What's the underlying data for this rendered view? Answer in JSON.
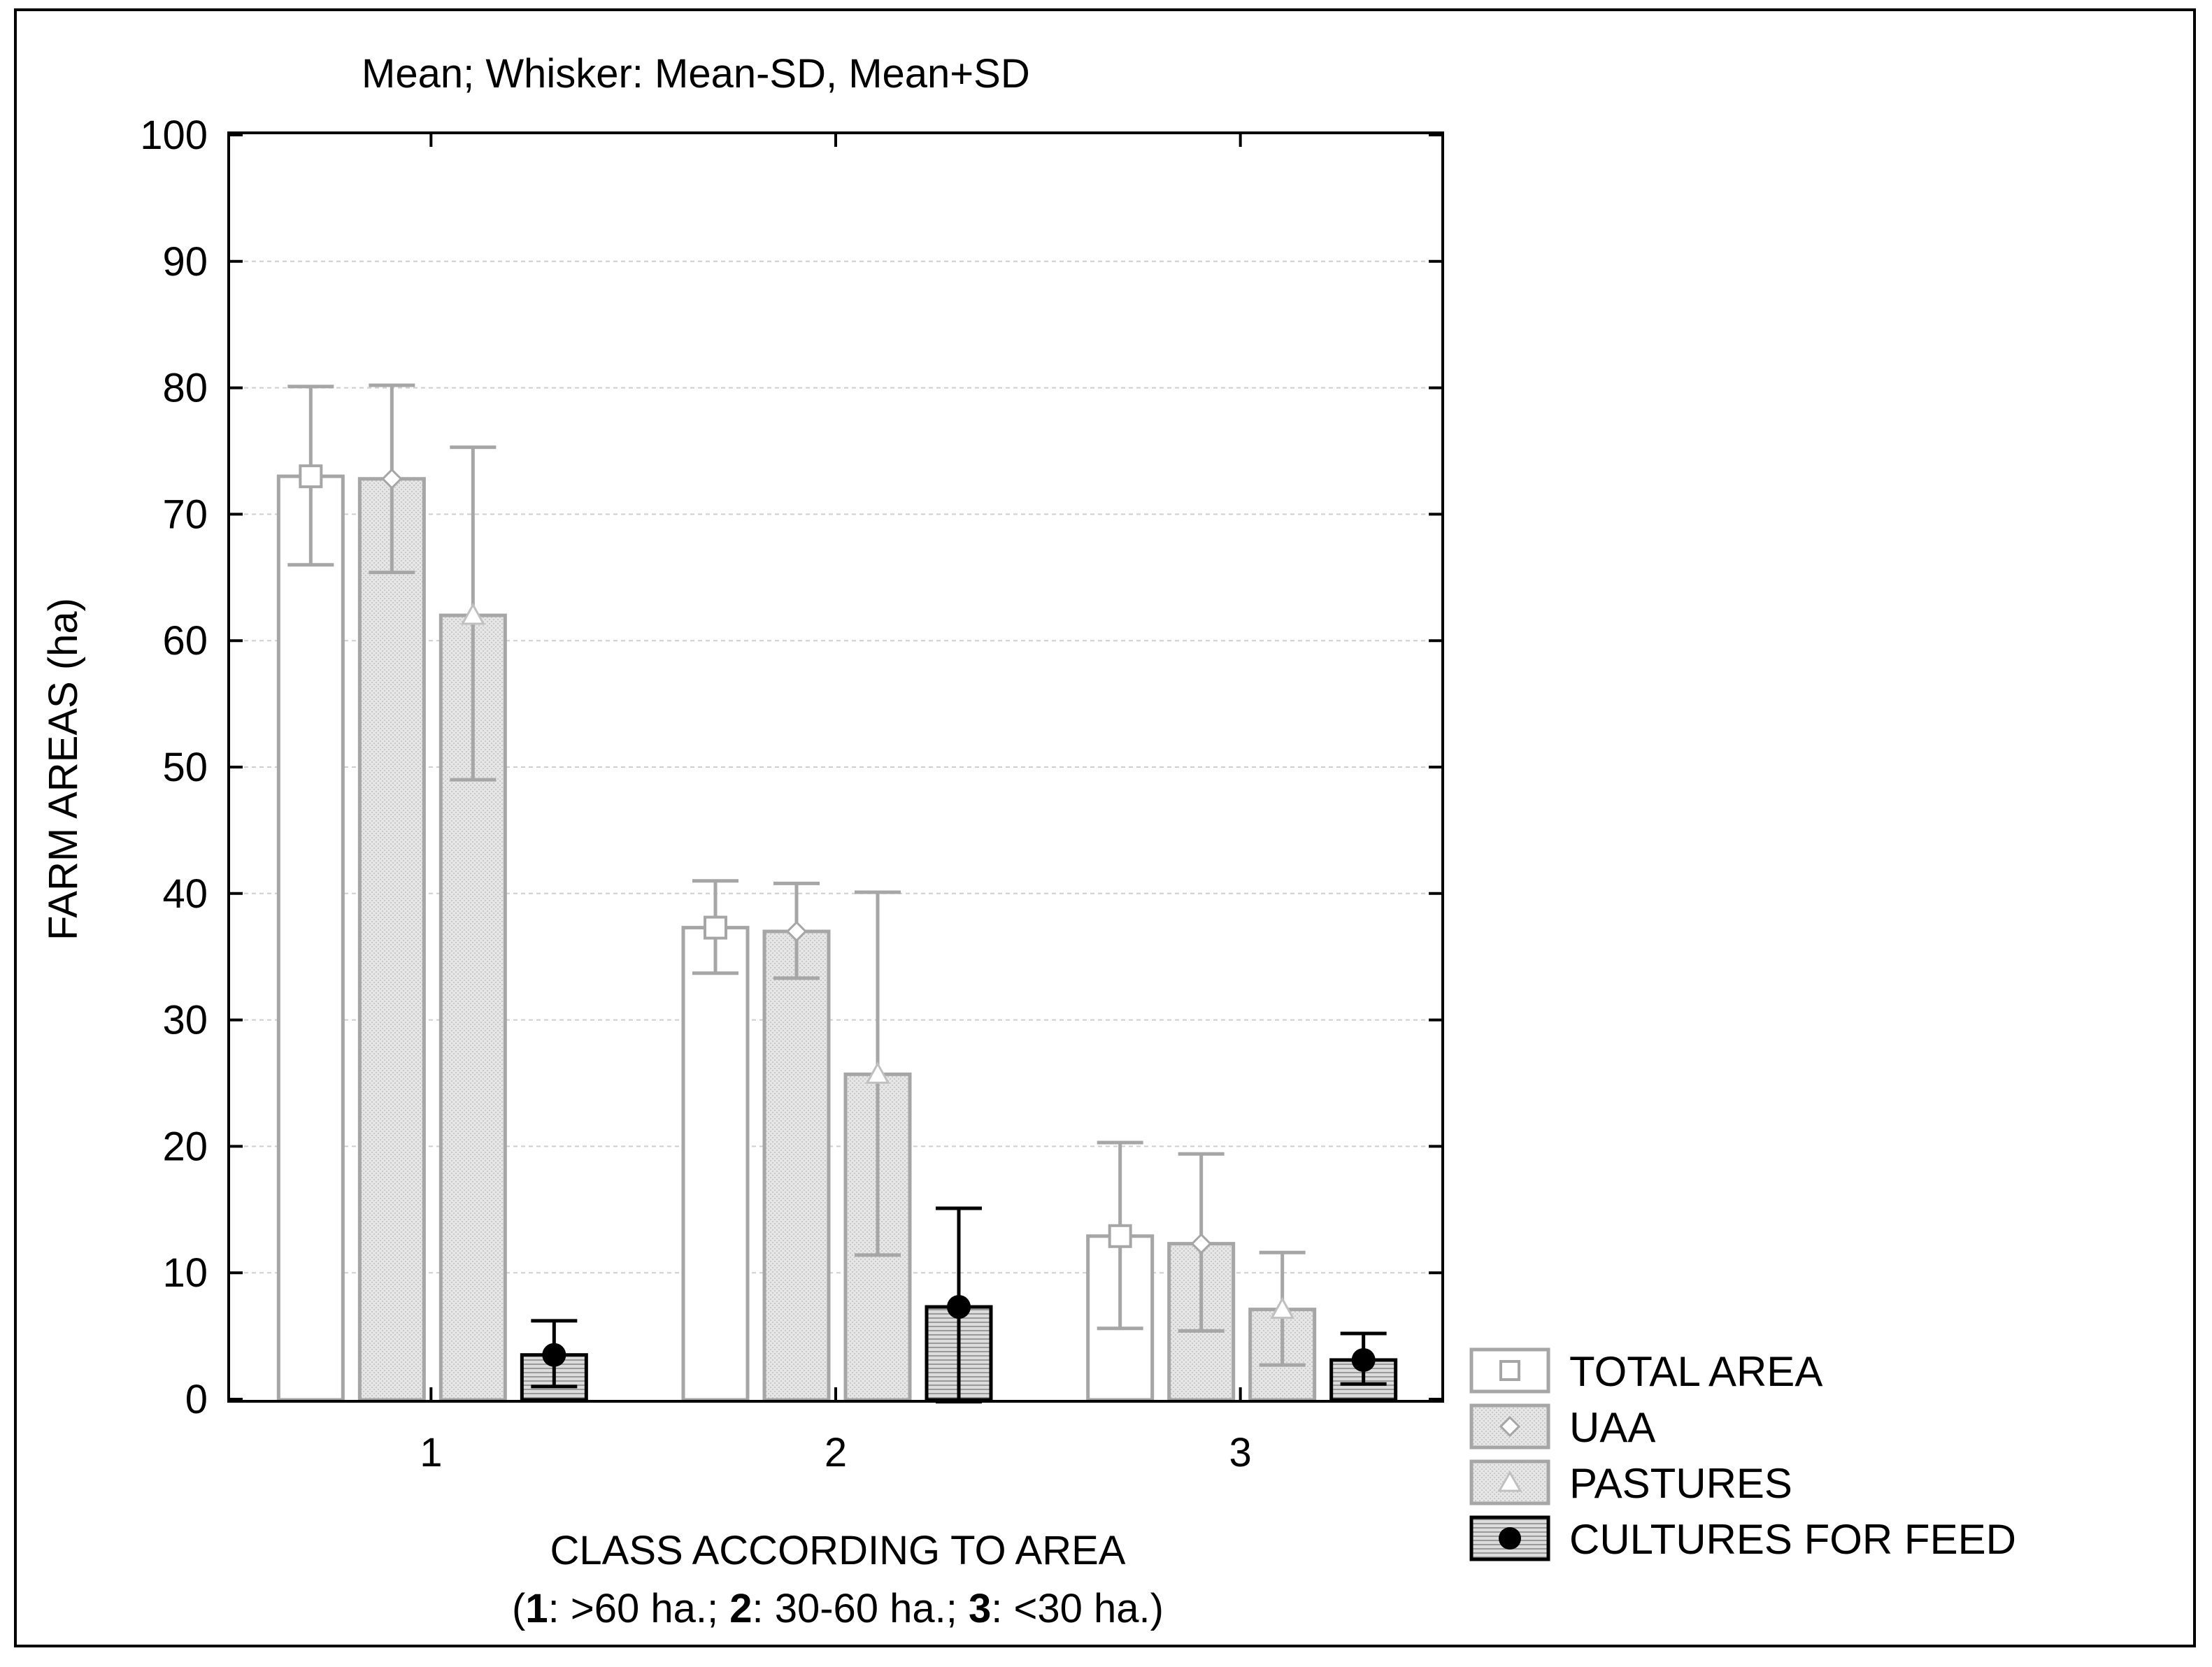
{
  "chart_data": {
    "type": "bar",
    "title": "Mean;  Whisker: Mean-SD, Mean+SD",
    "xlabel": "CLASS ACCORDING TO AREA",
    "xlabel_note": {
      "open": "(",
      "c1": "1",
      "d1": ": >60 ha.;  ",
      "c2": "2",
      "d2": ": 30-60 ha.;  ",
      "c3": "3",
      "d3": ": <30 ha.)"
    },
    "ylabel": "FARM AREAS (ha)",
    "ylim": [
      0,
      100
    ],
    "yticks": [
      0,
      10,
      20,
      30,
      40,
      50,
      60,
      70,
      80,
      90,
      100
    ],
    "grid": true,
    "legend_position": "bottom-right, outside plot",
    "categories": [
      "1",
      "2",
      "3"
    ],
    "series": [
      {
        "name": "TOTAL AREA",
        "marker": "square",
        "bar_fill": "#ffffff",
        "edge": "#a6a6a6",
        "values": [
          73.0,
          37.3,
          12.9
        ],
        "err_low": [
          66.0,
          33.7,
          5.6
        ],
        "err_high": [
          80.1,
          41.0,
          20.3
        ]
      },
      {
        "name": "UAA",
        "marker": "diamond",
        "bar_fill": "#e0e0e0",
        "edge": "#a6a6a6",
        "values": [
          72.8,
          37.0,
          12.3
        ],
        "err_low": [
          65.4,
          33.3,
          5.4
        ],
        "err_high": [
          80.2,
          40.8,
          19.4
        ]
      },
      {
        "name": "PASTURES",
        "marker": "triangle",
        "bar_fill": "#e4e4e4",
        "edge": "#a6a6a6",
        "values": [
          62.0,
          25.7,
          7.1
        ],
        "err_low": [
          49.0,
          11.4,
          2.7
        ],
        "err_high": [
          75.3,
          40.1,
          11.6
        ]
      },
      {
        "name": "CULTURES FOR FEED",
        "marker": "circle",
        "bar_fill": "#d2d2d2",
        "edge": "#000000",
        "values": [
          3.5,
          7.3,
          3.1
        ],
        "err_low": [
          1.0,
          -0.2,
          1.2
        ],
        "err_high": [
          6.2,
          15.1,
          5.2
        ]
      }
    ]
  }
}
